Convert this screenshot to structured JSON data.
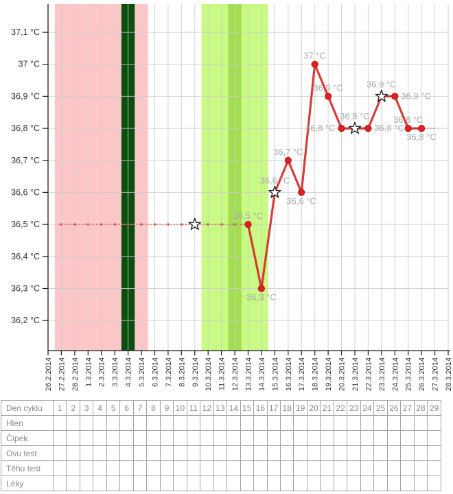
{
  "chart_data": {
    "type": "line",
    "ylabel": "",
    "xlabel": "",
    "ylim": [
      36.106,
      37.188
    ],
    "grid": true,
    "x_categories": [
      "26.2.2014",
      "27.2.2014",
      "28.2.2014",
      "1.3.2014",
      "2.3.2014",
      "3.3.2014",
      "4.3.2014",
      "5.3.2014",
      "6.3.2014",
      "7.3.2014",
      "8.3.2014",
      "9.3.2014",
      "10.3.2014",
      "11.3.2014",
      "12.3.2014",
      "13.3.2014",
      "14.3.2014",
      "15.3.2014",
      "16.3.2014",
      "17.3.2014",
      "18.3.2014",
      "19.3.2014",
      "20.3.2014",
      "21.3.2014",
      "22.3.2014",
      "23.3.2014",
      "24.3.2014",
      "25.3.2014",
      "26.3.2014",
      "27.3.2014",
      "28.3.2014"
    ],
    "y_ticks": [
      {
        "value": 37.1,
        "label": "37,1 °C"
      },
      {
        "value": 37.0,
        "label": "37 °C"
      },
      {
        "value": 36.9,
        "label": "36,9 °C"
      },
      {
        "value": 36.8,
        "label": "36,8 °C"
      },
      {
        "value": 36.7,
        "label": "36,7 °C"
      },
      {
        "value": 36.6,
        "label": "36,6 °C"
      },
      {
        "value": 36.5,
        "label": "36,5 °C"
      },
      {
        "value": 36.4,
        "label": "36,4 °C"
      },
      {
        "value": 36.3,
        "label": "36,3 °C"
      },
      {
        "value": 36.2,
        "label": "36,2 °C"
      }
    ],
    "regions": [
      {
        "name": "menstruation",
        "color_key": "pink",
        "from": "27.2.2014",
        "to": "5.3.2014"
      },
      {
        "name": "fertile-window",
        "color_key": "light_green",
        "from": "10.3.2014",
        "to": "14.3.2014"
      },
      {
        "name": "marked-day",
        "color_key": "dark_green",
        "from": "4.3.2014",
        "to": "4.3.2014"
      },
      {
        "name": "ovulation-day",
        "color_key": "mid_green",
        "from": "12.3.2014",
        "to": "12.3.2014"
      }
    ],
    "dotted_segments": [
      {
        "value": 36.5,
        "from": "27.2.2014",
        "to": "13.3.2014",
        "day_markers": true
      },
      {
        "value": 36.8,
        "from": "26.3.2014",
        "to": "27.3.2014",
        "day_markers": false
      }
    ],
    "isolated_stars": [
      {
        "date": "9.3.2014",
        "value": 36.5
      }
    ],
    "points": [
      {
        "date": "13.3.2014",
        "value": 36.5,
        "marker": "dot",
        "label": "36,5 °C",
        "label_pos": "above"
      },
      {
        "date": "14.3.2014",
        "value": 36.3,
        "marker": "dot",
        "label": "36,3 °C",
        "label_pos": "below"
      },
      {
        "date": "15.3.2014",
        "value": 36.6,
        "marker": "star",
        "label": "36,6 °C",
        "label_pos": "above"
      },
      {
        "date": "16.3.2014",
        "value": 36.7,
        "marker": "dot",
        "label": "36,7 °C",
        "label_pos": "above"
      },
      {
        "date": "17.3.2014",
        "value": 36.6,
        "marker": "dot",
        "label": "36,6 °C",
        "label_pos": "below"
      },
      {
        "date": "18.3.2014",
        "value": 37.0,
        "marker": "dot",
        "label": "37 °C",
        "label_pos": "above"
      },
      {
        "date": "19.3.2014",
        "value": 36.9,
        "marker": "dot",
        "label": "36,9 °C",
        "label_pos": "above"
      },
      {
        "date": "20.3.2014",
        "value": 36.8,
        "marker": "dot",
        "label": "36,8 °C",
        "label_pos": "left"
      },
      {
        "date": "21.3.2014",
        "value": 36.8,
        "marker": "star",
        "label": "36,8 °C",
        "label_pos": "above"
      },
      {
        "date": "22.3.2014",
        "value": 36.8,
        "marker": "dot",
        "label": "36,8 °C",
        "label_pos": "right"
      },
      {
        "date": "23.3.2014",
        "value": 36.9,
        "marker": "star",
        "label": "36,9 °C",
        "label_pos": "above"
      },
      {
        "date": "24.3.2014",
        "value": 36.9,
        "marker": "dot",
        "label": "36,9 °C",
        "label_pos": "right"
      },
      {
        "date": "25.3.2014",
        "value": 36.8,
        "marker": "dot",
        "label": "36,8 °C",
        "label_pos": "above"
      },
      {
        "date": "26.3.2014",
        "value": 36.8,
        "marker": "dot",
        "label": "36,8 °C",
        "label_pos": "below"
      }
    ]
  },
  "colors": {
    "pink": "#fdc7c7",
    "dark_green": "#0a4f0d",
    "light_green": "#c9fa83",
    "mid_green": "#a2dd52",
    "line": "#d22c2a",
    "point_fill": "#dd2020",
    "dotted": "#d4403d",
    "point_label": "#a9a9a9",
    "grid": "#cccccc",
    "axis": "#1a1a1a",
    "axis_text": "#333333",
    "star_fill": "#ffffff",
    "star_stroke": "#222222"
  },
  "table": {
    "header_label": "Den cyklu",
    "days": [
      "1",
      "2",
      "3",
      "4",
      "5",
      "6",
      "7",
      "8",
      "9",
      "10",
      "11",
      "12",
      "13",
      "14",
      "15",
      "16",
      "17",
      "18",
      "19",
      "20",
      "21",
      "22",
      "23",
      "24",
      "25",
      "26",
      "27",
      "28",
      "29"
    ],
    "rows": [
      {
        "label": "Hlen"
      },
      {
        "label": "Čípek"
      },
      {
        "label": "Ovu test"
      },
      {
        "label": "Těhu test"
      },
      {
        "label": "Léky"
      }
    ]
  }
}
